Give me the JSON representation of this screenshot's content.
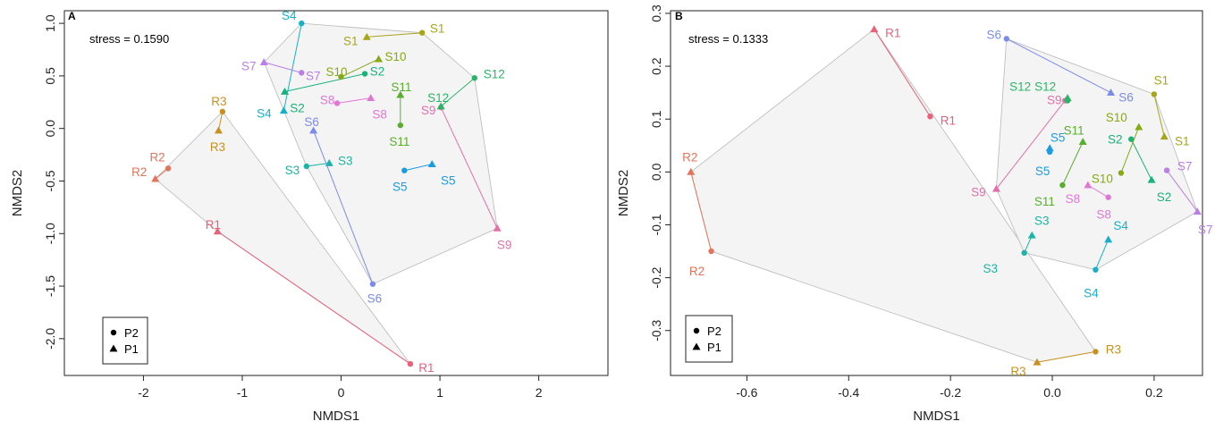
{
  "chart_data": [
    {
      "type": "scatter",
      "panel": "A",
      "annotation": "stress = 0.1590",
      "xlabel": "NMDS1",
      "ylabel": "NMDS2",
      "xlim": [
        -2.8,
        2.7
      ],
      "ylim": [
        -2.35,
        1.12
      ],
      "xticks": [
        -2,
        -1,
        0,
        1,
        2
      ],
      "yticks": [
        -2.0,
        -1.5,
        -1.0,
        -0.5,
        0.0,
        0.5,
        1.0
      ],
      "ytick_labels": [
        "-2.0",
        "-1.5",
        "-1.0",
        "-0.5",
        "0.0",
        "0.5",
        "1.0"
      ],
      "legend": [
        {
          "label": "P2",
          "marker": "circle"
        },
        {
          "label": "P1",
          "marker": "triangle"
        }
      ],
      "legend_position": "bottom-left",
      "hulls": [
        [
          "R2",
          "R1",
          "R3"
        ],
        [
          "R2",
          "R2",
          "R3"
        ]
      ],
      "sites": [
        {
          "name": "R1",
          "color": "#e8607a",
          "P1": [
            -1.25,
            -0.98
          ],
          "P2": [
            0.7,
            -2.24
          ]
        },
        {
          "name": "R2",
          "color": "#e3735a",
          "P1": [
            -1.88,
            -0.48
          ],
          "P2": [
            -1.75,
            -0.38
          ]
        },
        {
          "name": "R3",
          "color": "#c9901f",
          "P1": [
            -1.24,
            -0.02
          ],
          "P2": [
            -1.2,
            0.16
          ]
        },
        {
          "name": "S1",
          "color": "#a7a51a",
          "P1": [
            0.26,
            0.87
          ],
          "P2": [
            0.82,
            0.91
          ]
        },
        {
          "name": "S2",
          "color": "#18b27b",
          "P1": [
            -0.57,
            0.35
          ],
          "P2": [
            0.24,
            0.52
          ]
        },
        {
          "name": "S3",
          "color": "#1ab5a5",
          "P1": [
            -0.12,
            -0.33
          ],
          "P2": [
            -0.35,
            -0.36
          ]
        },
        {
          "name": "S4",
          "color": "#16b1c9",
          "P1": [
            -0.58,
            0.17
          ],
          "P2": [
            -0.4,
            1.0
          ]
        },
        {
          "name": "S5",
          "color": "#1b9ce2",
          "P1": [
            0.92,
            -0.34
          ],
          "P2": [
            0.64,
            -0.4
          ]
        },
        {
          "name": "S6",
          "color": "#7b8bea",
          "P1": [
            -0.28,
            -0.02
          ],
          "P2": [
            0.32,
            -1.48
          ]
        },
        {
          "name": "S7",
          "color": "#bb7ee9",
          "P1": [
            -0.78,
            0.63
          ],
          "P2": [
            -0.4,
            0.53
          ]
        },
        {
          "name": "S8",
          "color": "#e176d6",
          "P1": [
            0.3,
            0.29
          ],
          "P2": [
            -0.04,
            0.24
          ]
        },
        {
          "name": "S9",
          "color": "#e36fa9",
          "P1": [
            1.58,
            -0.95
          ],
          "P2": [
            1.01,
            0.2
          ]
        },
        {
          "name": "S10",
          "color": "#86a915",
          "P1": [
            0.38,
            0.66
          ],
          "P2": [
            0.0,
            0.49
          ]
        },
        {
          "name": "S11",
          "color": "#5aae2f",
          "P1": [
            0.6,
            0.32
          ],
          "P2": [
            0.6,
            0.03
          ]
        },
        {
          "name": "S12",
          "color": "#2ab566",
          "P1": [
            1.01,
            0.21
          ],
          "P2": [
            1.35,
            0.48
          ]
        }
      ]
    },
    {
      "type": "scatter",
      "panel": "B",
      "annotation": "stress = 0.1333",
      "xlabel": "NMDS1",
      "ylabel": "NMDS2",
      "xlim": [
        -0.75,
        0.295
      ],
      "ylim": [
        -0.385,
        0.305
      ],
      "xticks": [
        -0.6,
        -0.4,
        -0.2,
        0.0,
        0.2
      ],
      "xtick_labels": [
        "-0.6",
        "-0.4",
        "-0.2",
        "0.0",
        "0.2"
      ],
      "yticks": [
        -0.3,
        -0.2,
        -0.1,
        0.0,
        0.1,
        0.2,
        0.3
      ],
      "ytick_labels": [
        "-0.3",
        "-0.2",
        "-0.1",
        "0.0",
        "0.1",
        "0.2",
        "0.3"
      ],
      "legend": [
        {
          "label": "P2",
          "marker": "circle"
        },
        {
          "label": "P1",
          "marker": "triangle"
        }
      ],
      "legend_position": "bottom-left",
      "sites": [
        {
          "name": "R1",
          "color": "#e8607a",
          "P1": [
            -0.35,
            0.27
          ],
          "P2": [
            -0.24,
            0.105
          ]
        },
        {
          "name": "R2",
          "color": "#e3735a",
          "P1": [
            -0.71,
            0.0
          ],
          "P2": [
            -0.67,
            -0.15
          ]
        },
        {
          "name": "R3",
          "color": "#c9901f",
          "P1": [
            -0.03,
            -0.36
          ],
          "P2": [
            0.085,
            -0.34
          ]
        },
        {
          "name": "S1",
          "color": "#a7a51a",
          "P1": [
            0.22,
            0.067
          ],
          "P2": [
            0.2,
            0.147
          ]
        },
        {
          "name": "S2",
          "color": "#18b27b",
          "P1": [
            0.195,
            -0.015
          ],
          "P2": [
            0.155,
            0.062
          ]
        },
        {
          "name": "S3",
          "color": "#1ab5a5",
          "P1": [
            -0.04,
            -0.12
          ],
          "P2": [
            -0.055,
            -0.153
          ]
        },
        {
          "name": "S4",
          "color": "#16b1c9",
          "P1": [
            0.11,
            -0.128
          ],
          "P2": [
            0.085,
            -0.185
          ]
        },
        {
          "name": "S5",
          "color": "#1b9ce2",
          "P1": [
            -0.005,
            0.045
          ],
          "P2": [
            -0.005,
            0.038
          ]
        },
        {
          "name": "S6",
          "color": "#7b8bea",
          "P1": [
            0.115,
            0.15
          ],
          "P2": [
            -0.09,
            0.252
          ]
        },
        {
          "name": "S7",
          "color": "#bb7ee9",
          "P1": [
            0.285,
            -0.075
          ],
          "P2": [
            0.225,
            0.003
          ]
        },
        {
          "name": "S8",
          "color": "#e176d6",
          "P1": [
            0.07,
            -0.025
          ],
          "P2": [
            0.11,
            -0.048
          ]
        },
        {
          "name": "S9",
          "color": "#e36fa9",
          "P1": [
            -0.11,
            -0.032
          ],
          "P2": [
            0.025,
            0.135
          ]
        },
        {
          "name": "S10",
          "color": "#86a915",
          "P1": [
            0.17,
            0.085
          ],
          "P2": [
            0.135,
            -0.002
          ]
        },
        {
          "name": "S11",
          "color": "#5aae2f",
          "P1": [
            0.06,
            0.057
          ],
          "P2": [
            0.02,
            -0.025
          ]
        },
        {
          "name": "S12",
          "color": "#2ab566",
          "P1": [
            0.03,
            0.14
          ],
          "P2": [
            0.03,
            0.135
          ]
        }
      ]
    }
  ]
}
